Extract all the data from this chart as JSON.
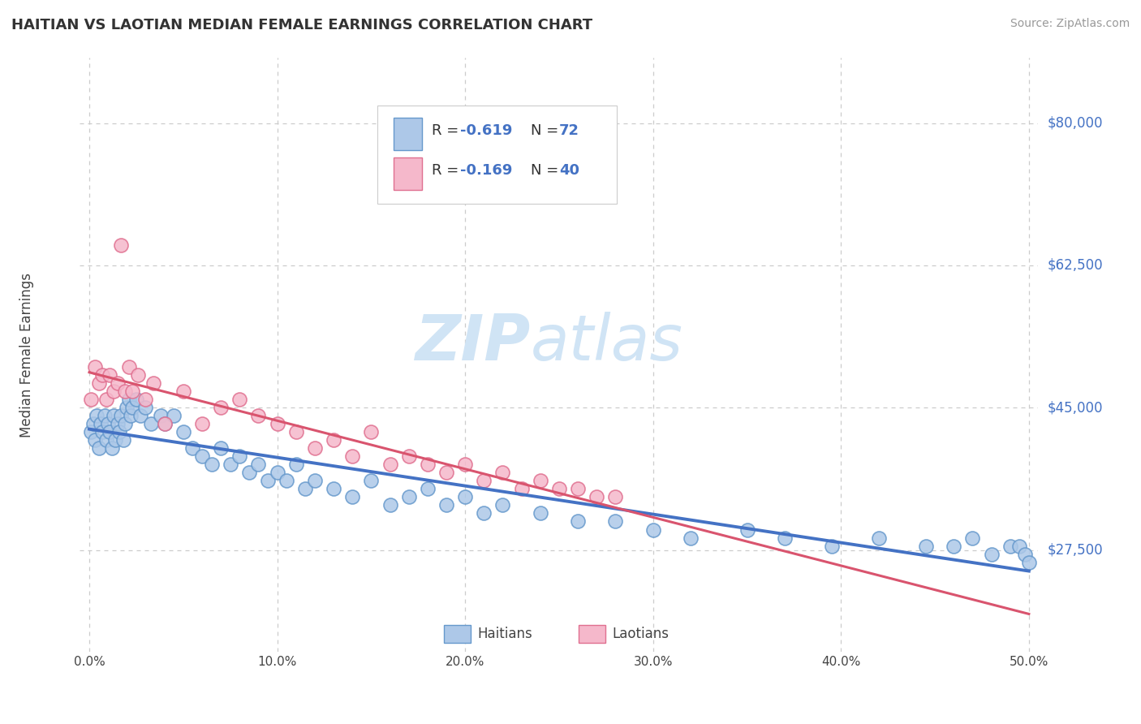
{
  "title": "HAITIAN VS LAOTIAN MEDIAN FEMALE EARNINGS CORRELATION CHART",
  "source_text": "Source: ZipAtlas.com",
  "ylabel_text": "Median Female Earnings",
  "xlim": [
    -0.005,
    0.505
  ],
  "ylim": [
    15000,
    88000
  ],
  "xtick_labels": [
    "0.0%",
    "10.0%",
    "20.0%",
    "30.0%",
    "40.0%",
    "50.0%"
  ],
  "xtick_vals": [
    0.0,
    0.1,
    0.2,
    0.3,
    0.4,
    0.5
  ],
  "ytick_vals": [
    80000,
    62500,
    45000,
    27500
  ],
  "ytick_labels": [
    "$80,000",
    "$62,500",
    "$45,000",
    "$27,500"
  ],
  "haitian_color": "#adc8e8",
  "haitian_edge": "#6699cc",
  "laotian_color": "#f5b8cb",
  "laotian_edge": "#e07090",
  "haitian_line_color": "#4472c4",
  "laotian_line_color": "#d9546e",
  "watermark_zip": "ZIP",
  "watermark_atlas": "atlas",
  "watermark_color": "#d0e4f5",
  "grid_color": "#cccccc",
  "bg_color": "#ffffff",
  "haitian_x": [
    0.001,
    0.002,
    0.003,
    0.004,
    0.005,
    0.006,
    0.007,
    0.008,
    0.009,
    0.01,
    0.011,
    0.012,
    0.013,
    0.014,
    0.015,
    0.016,
    0.017,
    0.018,
    0.019,
    0.02,
    0.021,
    0.022,
    0.023,
    0.025,
    0.027,
    0.03,
    0.033,
    0.038,
    0.04,
    0.045,
    0.05,
    0.055,
    0.06,
    0.065,
    0.07,
    0.075,
    0.08,
    0.085,
    0.09,
    0.095,
    0.1,
    0.105,
    0.11,
    0.115,
    0.12,
    0.13,
    0.14,
    0.15,
    0.16,
    0.17,
    0.18,
    0.19,
    0.2,
    0.21,
    0.22,
    0.24,
    0.26,
    0.28,
    0.3,
    0.32,
    0.35,
    0.37,
    0.395,
    0.42,
    0.445,
    0.46,
    0.47,
    0.48,
    0.49,
    0.495,
    0.498,
    0.5
  ],
  "haitian_y": [
    42000,
    43000,
    41000,
    44000,
    40000,
    43000,
    42000,
    44000,
    41000,
    43000,
    42000,
    40000,
    44000,
    41000,
    43000,
    42000,
    44000,
    41000,
    43000,
    45000,
    46000,
    44000,
    45000,
    46000,
    44000,
    45000,
    43000,
    44000,
    43000,
    44000,
    42000,
    40000,
    39000,
    38000,
    40000,
    38000,
    39000,
    37000,
    38000,
    36000,
    37000,
    36000,
    38000,
    35000,
    36000,
    35000,
    34000,
    36000,
    33000,
    34000,
    35000,
    33000,
    34000,
    32000,
    33000,
    32000,
    31000,
    31000,
    30000,
    29000,
    30000,
    29000,
    28000,
    29000,
    28000,
    28000,
    29000,
    27000,
    28000,
    28000,
    27000,
    26000
  ],
  "laotian_x": [
    0.001,
    0.003,
    0.005,
    0.007,
    0.009,
    0.011,
    0.013,
    0.015,
    0.017,
    0.019,
    0.021,
    0.023,
    0.026,
    0.03,
    0.034,
    0.04,
    0.05,
    0.06,
    0.07,
    0.08,
    0.09,
    0.1,
    0.11,
    0.12,
    0.13,
    0.14,
    0.15,
    0.16,
    0.17,
    0.18,
    0.19,
    0.2,
    0.21,
    0.22,
    0.23,
    0.24,
    0.25,
    0.26,
    0.27,
    0.28
  ],
  "laotian_y": [
    46000,
    50000,
    48000,
    49000,
    46000,
    49000,
    47000,
    48000,
    65000,
    47000,
    50000,
    47000,
    49000,
    46000,
    48000,
    43000,
    47000,
    43000,
    45000,
    46000,
    44000,
    43000,
    42000,
    40000,
    41000,
    39000,
    42000,
    38000,
    39000,
    38000,
    37000,
    38000,
    36000,
    37000,
    35000,
    36000,
    35000,
    35000,
    34000,
    34000
  ]
}
